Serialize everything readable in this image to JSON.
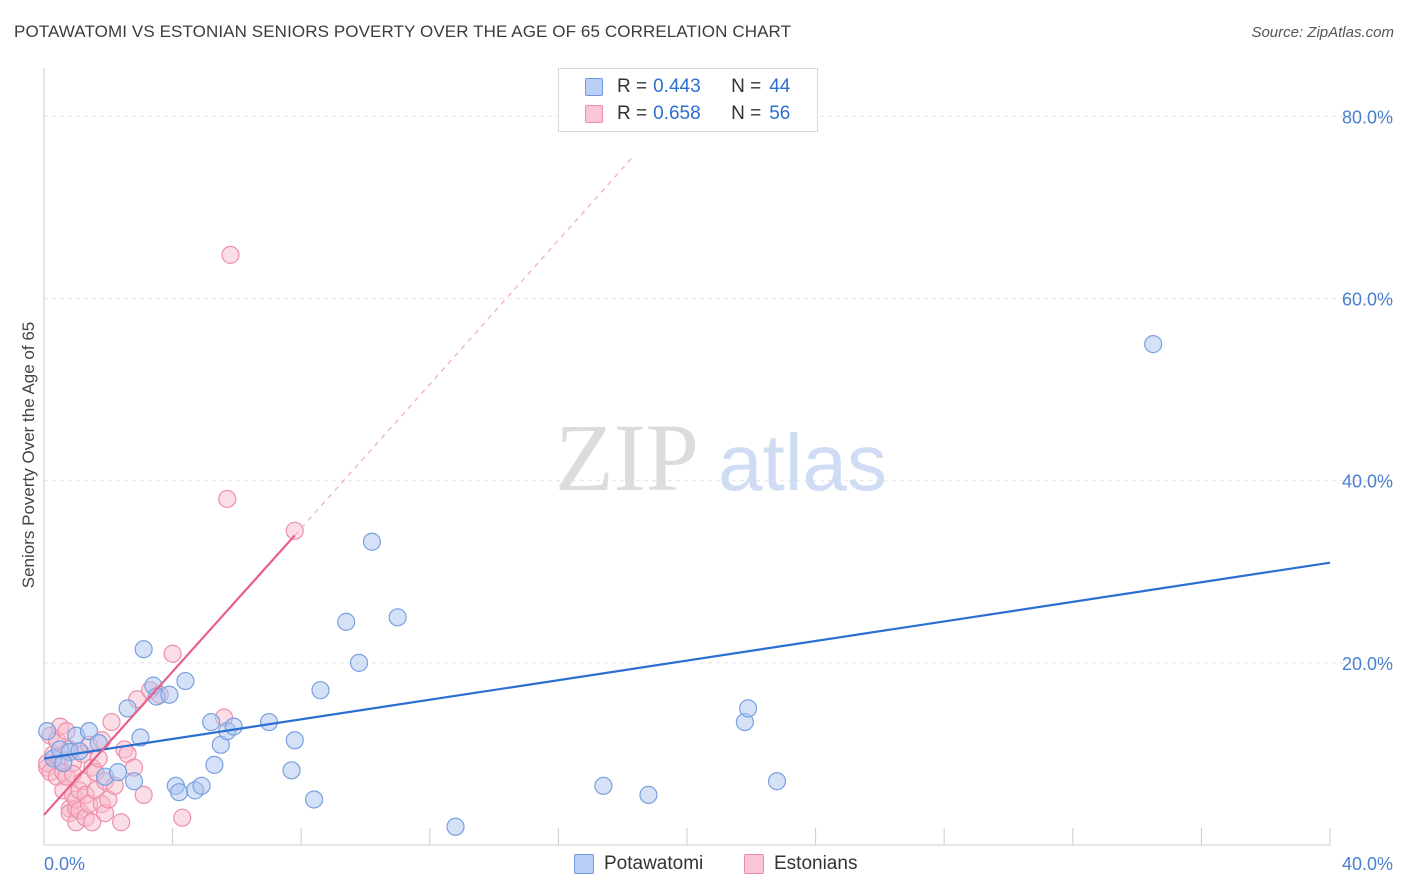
{
  "title": "POTAWATOMI VS ESTONIAN SENIORS POVERTY OVER THE AGE OF 65 CORRELATION CHART",
  "source": "Source: ZipAtlas.com",
  "watermark": {
    "zip": "ZIP",
    "atlas": "atlas"
  },
  "legend": {
    "r_label": "R =",
    "n_label": "N =",
    "rows": [
      {
        "series": "Potawatomi",
        "r": "0.443",
        "n": "44"
      },
      {
        "series": "Estonians",
        "r": "0.658",
        "n": "56"
      }
    ]
  },
  "colors": {
    "blue_fill": "#a9c4f0",
    "blue_stroke": "#7aa0e0",
    "blue_line": "#2b6fd1",
    "pink_fill": "#f7bccd",
    "pink_stroke": "#ee8fab",
    "pink_line": "#e8608a",
    "axis_tick_text": "#4a7fd0"
  },
  "chart_data": {
    "type": "scatter",
    "title": "POTAWATOMI VS ESTONIAN SENIORS POVERTY OVER THE AGE OF 65 CORRELATION CHART",
    "xlabel": "",
    "ylabel": "Seniors Poverty Over the Age of 65",
    "xlim": [
      0,
      40
    ],
    "ylim": [
      0,
      84
    ],
    "x_ticks": [
      {
        "value": 0,
        "label": "0.0%"
      },
      {
        "value": 40,
        "label": "40.0%"
      }
    ],
    "y_ticks": [
      {
        "value": 20,
        "label": "20.0%"
      },
      {
        "value": 40,
        "label": "40.0%"
      },
      {
        "value": 60,
        "label": "60.0%"
      },
      {
        "value": 80,
        "label": "80.0%"
      }
    ],
    "grid": true,
    "legend_position": "top-center",
    "series": [
      {
        "name": "Potawatomi",
        "points": [
          [
            0.1,
            12.5
          ],
          [
            0.3,
            9.5
          ],
          [
            0.5,
            10.5
          ],
          [
            0.8,
            10.2
          ],
          [
            1.0,
            12.0
          ],
          [
            1.1,
            10.3
          ],
          [
            1.4,
            12.5
          ],
          [
            1.7,
            11.2
          ],
          [
            1.9,
            7.5
          ],
          [
            2.3,
            8.0
          ],
          [
            2.6,
            15.0
          ],
          [
            2.8,
            7.0
          ],
          [
            3.0,
            11.8
          ],
          [
            3.1,
            21.5
          ],
          [
            3.4,
            17.5
          ],
          [
            3.5,
            16.3
          ],
          [
            3.9,
            16.5
          ],
          [
            4.1,
            6.5
          ],
          [
            4.2,
            5.8
          ],
          [
            4.4,
            18.0
          ],
          [
            4.7,
            6.0
          ],
          [
            4.9,
            6.5
          ],
          [
            5.2,
            13.5
          ],
          [
            5.3,
            8.8
          ],
          [
            5.5,
            11.0
          ],
          [
            5.7,
            12.5
          ],
          [
            5.9,
            13.0
          ],
          [
            7.0,
            13.5
          ],
          [
            7.7,
            8.2
          ],
          [
            7.8,
            11.5
          ],
          [
            8.4,
            5.0
          ],
          [
            8.6,
            17.0
          ],
          [
            9.4,
            24.5
          ],
          [
            9.8,
            20.0
          ],
          [
            10.2,
            33.3
          ],
          [
            11.0,
            25.0
          ],
          [
            12.8,
            2.0
          ],
          [
            17.4,
            6.5
          ],
          [
            18.8,
            5.5
          ],
          [
            21.8,
            13.5
          ],
          [
            21.9,
            15.0
          ],
          [
            22.8,
            7.0
          ],
          [
            34.5,
            55.0
          ],
          [
            0.6,
            9.0
          ]
        ]
      },
      {
        "name": "Estonians",
        "points": [
          [
            0.1,
            8.5
          ],
          [
            0.1,
            9.0
          ],
          [
            0.2,
            12.0
          ],
          [
            0.2,
            8.0
          ],
          [
            0.3,
            10.0
          ],
          [
            0.4,
            11.5
          ],
          [
            0.4,
            7.5
          ],
          [
            0.5,
            13.0
          ],
          [
            0.5,
            9.5
          ],
          [
            0.6,
            6.0
          ],
          [
            0.6,
            8.0
          ],
          [
            0.7,
            7.5
          ],
          [
            0.7,
            12.5
          ],
          [
            0.8,
            10.5
          ],
          [
            0.8,
            4.0
          ],
          [
            0.8,
            3.5
          ],
          [
            0.9,
            9.0
          ],
          [
            0.9,
            5.5
          ],
          [
            0.9,
            7.8
          ],
          [
            1.0,
            4.0
          ],
          [
            1.0,
            2.5
          ],
          [
            1.0,
            5.0
          ],
          [
            1.1,
            3.8
          ],
          [
            1.1,
            6.0
          ],
          [
            1.2,
            10.0
          ],
          [
            1.2,
            7.0
          ],
          [
            1.3,
            5.5
          ],
          [
            1.3,
            3.0
          ],
          [
            1.4,
            11.0
          ],
          [
            1.4,
            4.5
          ],
          [
            1.5,
            8.5
          ],
          [
            1.5,
            2.5
          ],
          [
            1.6,
            8.0
          ],
          [
            1.6,
            6.0
          ],
          [
            1.7,
            9.5
          ],
          [
            1.8,
            11.5
          ],
          [
            1.8,
            4.5
          ],
          [
            1.9,
            3.5
          ],
          [
            1.9,
            7.0
          ],
          [
            2.0,
            5.0
          ],
          [
            2.1,
            13.5
          ],
          [
            2.2,
            6.5
          ],
          [
            2.4,
            2.5
          ],
          [
            2.5,
            10.5
          ],
          [
            2.6,
            10.0
          ],
          [
            2.8,
            8.5
          ],
          [
            2.9,
            16.0
          ],
          [
            3.1,
            5.5
          ],
          [
            3.3,
            17.0
          ],
          [
            3.6,
            16.5
          ],
          [
            4.0,
            21.0
          ],
          [
            4.3,
            3.0
          ],
          [
            5.6,
            14.0
          ],
          [
            5.8,
            64.8
          ],
          [
            5.7,
            38.0
          ],
          [
            7.8,
            34.5
          ]
        ]
      }
    ],
    "trendlines": [
      {
        "series": "Potawatomi",
        "x": [
          0,
          40
        ],
        "y": [
          9.5,
          31.0
        ]
      },
      {
        "series": "Estonians",
        "x": [
          0,
          7.8
        ],
        "y": [
          3.3,
          34.0
        ],
        "dashed_extension_to": [
          18.3,
          75.5
        ]
      }
    ]
  }
}
